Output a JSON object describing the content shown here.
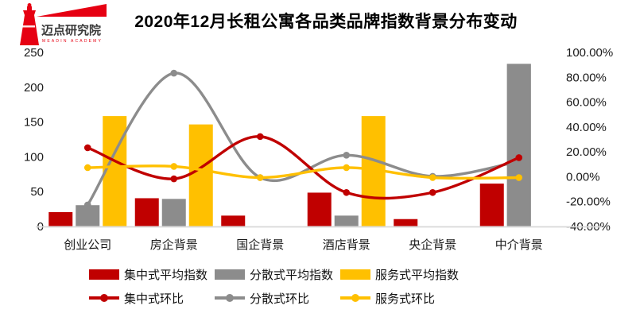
{
  "logo": {
    "name": "迈点研究院",
    "subtitle": "MEADIN ACADEMY",
    "brand_color": "#E60012"
  },
  "title": "2020年12月长租公寓各品类品牌指数背景分布变动",
  "chart_data": {
    "type": "combo-bar-line",
    "title": "2020年12月长租公寓各品类品牌指数背景分布变动",
    "categories": [
      "创业公司",
      "房企背景",
      "国企背景",
      "酒店背景",
      "央企背景",
      "中介背景"
    ],
    "bar_series": [
      {
        "name": "集中式平均指数",
        "color": "#C00000",
        "axis": "left",
        "values": [
          20,
          40,
          15,
          48,
          10,
          61
        ]
      },
      {
        "name": "分散式平均指数",
        "color": "#8C8C8C",
        "axis": "left",
        "values": [
          30,
          39,
          0,
          15,
          0,
          233
        ]
      },
      {
        "name": "服务式平均指数",
        "color": "#FFC000",
        "axis": "left",
        "values": [
          158,
          146,
          0,
          158,
          0,
          0
        ]
      }
    ],
    "line_series": [
      {
        "name": "集中式环比",
        "color": "#C00000",
        "axis": "right",
        "values_pct": [
          23,
          -2,
          32,
          -13,
          -13,
          15
        ]
      },
      {
        "name": "分散式环比",
        "color": "#8C8C8C",
        "axis": "right",
        "values_pct": [
          -23,
          83,
          -1,
          17,
          0,
          12
        ]
      },
      {
        "name": "服务式环比",
        "color": "#FFC000",
        "axis": "right",
        "values_pct": [
          7,
          8,
          -1,
          7,
          -1,
          -1
        ]
      }
    ],
    "left_axis": {
      "min": 0,
      "max": 250,
      "step": 50,
      "ticks": [
        "0",
        "50",
        "100",
        "150",
        "200",
        "250"
      ]
    },
    "right_axis": {
      "min": -40,
      "max": 100,
      "step": 20,
      "ticks": [
        "100.00%",
        "80.00%",
        "60.00%",
        "40.00%",
        "20.00%",
        "0.00%",
        "-20.00%",
        "-40.00%"
      ]
    },
    "grid": false,
    "legend_position": "bottom",
    "axis_text_color": "#1a1a1a",
    "baseline_color": "#d9d9d9"
  }
}
